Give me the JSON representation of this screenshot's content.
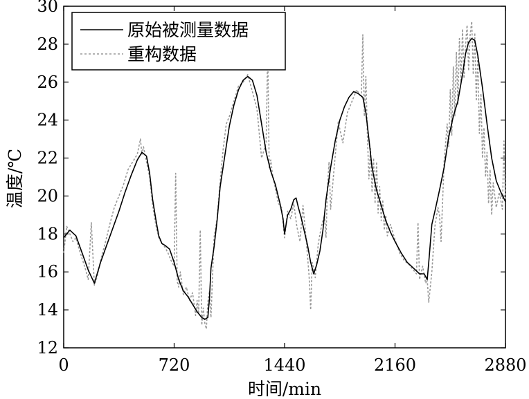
{
  "chart_data": {
    "type": "line",
    "title": "",
    "xlabel": "时间/min",
    "ylabel": "温度/℃",
    "xlim": [
      0,
      2880
    ],
    "ylim": [
      12,
      30
    ],
    "xticks": [
      0,
      720,
      1440,
      2160,
      2880
    ],
    "yticks": [
      12,
      14,
      16,
      18,
      20,
      22,
      24,
      26,
      28,
      30
    ],
    "grid": false,
    "legend_position": "top-left",
    "series": [
      {
        "name": "原始被测量数据",
        "style": "solid",
        "color": "#000000",
        "x": [
          0,
          40,
          80,
          120,
          160,
          200,
          240,
          280,
          320,
          360,
          400,
          440,
          480,
          510,
          540,
          560,
          580,
          600,
          620,
          640,
          660,
          690,
          720,
          750,
          780,
          810,
          840,
          870,
          900,
          920,
          940,
          950,
          960,
          980,
          1000,
          1020,
          1050,
          1080,
          1110,
          1140,
          1170,
          1200,
          1230,
          1260,
          1290,
          1320,
          1350,
          1380,
          1410,
          1430,
          1440,
          1460,
          1480,
          1500,
          1515,
          1530,
          1550,
          1570,
          1590,
          1610,
          1630,
          1650,
          1670,
          1690,
          1710,
          1740,
          1770,
          1800,
          1830,
          1860,
          1890,
          1920,
          1950,
          1970,
          1990,
          2010,
          2040,
          2070,
          2100,
          2130,
          2160,
          2200,
          2240,
          2280,
          2320,
          2350,
          2370,
          2380,
          2400,
          2420,
          2450,
          2480,
          2510,
          2540,
          2570,
          2600,
          2620,
          2640,
          2660,
          2680,
          2700,
          2730,
          2760,
          2790,
          2820,
          2850,
          2880
        ],
        "values": [
          17.8,
          18.2,
          17.9,
          17.0,
          16.1,
          15.4,
          16.5,
          17.4,
          18.3,
          19.2,
          20.2,
          21.1,
          21.9,
          22.3,
          22.1,
          21.2,
          19.8,
          18.8,
          17.9,
          17.5,
          17.4,
          17.2,
          16.5,
          15.6,
          15.0,
          14.7,
          14.3,
          13.9,
          13.6,
          13.5,
          13.6,
          14.6,
          16.2,
          17.3,
          18.7,
          20.5,
          22.1,
          23.7,
          24.8,
          25.6,
          26.1,
          26.3,
          26.1,
          25.3,
          23.8,
          22.3,
          21.3,
          20.6,
          19.6,
          18.8,
          18.0,
          19.0,
          19.3,
          19.8,
          19.9,
          19.4,
          18.8,
          18.1,
          17.4,
          16.5,
          15.9,
          16.4,
          17.1,
          18.2,
          19.8,
          21.5,
          22.9,
          24.0,
          24.7,
          25.2,
          25.5,
          25.4,
          25.2,
          24.4,
          23.0,
          21.5,
          20.3,
          19.5,
          18.7,
          18.1,
          17.6,
          17.0,
          16.5,
          16.2,
          15.9,
          15.9,
          15.6,
          16.5,
          18.5,
          19.2,
          20.3,
          21.5,
          23.1,
          24.2,
          25.0,
          26.4,
          27.5,
          28.1,
          28.3,
          28.2,
          27.4,
          25.7,
          23.8,
          22.0,
          20.8,
          20.2,
          19.7
        ]
      },
      {
        "name": "重构数据",
        "style": "dotted",
        "color": "#999999",
        "x": [
          0,
          20,
          40,
          60,
          80,
          100,
          120,
          140,
          160,
          180,
          200,
          220,
          240,
          270,
          300,
          330,
          360,
          390,
          420,
          450,
          480,
          500,
          510,
          520,
          540,
          560,
          580,
          600,
          620,
          640,
          660,
          680,
          700,
          720,
          730,
          740,
          750,
          760,
          780,
          800,
          820,
          840,
          860,
          870,
          880,
          890,
          900,
          910,
          920,
          930,
          940,
          950,
          960,
          980,
          1000,
          1020,
          1040,
          1060,
          1080,
          1110,
          1140,
          1170,
          1200,
          1230,
          1260,
          1290,
          1320,
          1330,
          1340,
          1350,
          1360,
          1380,
          1400,
          1420,
          1440,
          1460,
          1480,
          1500,
          1520,
          1540,
          1560,
          1580,
          1600,
          1610,
          1620,
          1630,
          1640,
          1660,
          1680,
          1700,
          1710,
          1720,
          1730,
          1740,
          1760,
          1790,
          1820,
          1850,
          1880,
          1910,
          1940,
          1950,
          1960,
          1970,
          1980,
          1990,
          2000,
          2010,
          2020,
          2030,
          2040,
          2050,
          2060,
          2070,
          2080,
          2090,
          2100,
          2110,
          2130,
          2160,
          2190,
          2220,
          2250,
          2280,
          2300,
          2310,
          2320,
          2340,
          2360,
          2370,
          2380,
          2400,
          2420,
          2440,
          2450,
          2460,
          2480,
          2500,
          2510,
          2520,
          2530,
          2540,
          2550,
          2560,
          2570,
          2580,
          2590,
          2600,
          2610,
          2620,
          2630,
          2640,
          2650,
          2660,
          2670,
          2680,
          2690,
          2700,
          2710,
          2720,
          2730,
          2740,
          2750,
          2760,
          2770,
          2780,
          2790,
          2800,
          2820,
          2840,
          2860,
          2870,
          2880
        ],
        "values": [
          17.0,
          18.4,
          18.0,
          17.6,
          17.8,
          17.2,
          16.7,
          16.2,
          15.6,
          18.6,
          15.3,
          15.8,
          16.6,
          17.5,
          18.5,
          19.4,
          20.0,
          20.6,
          21.4,
          21.8,
          22.2,
          23.0,
          22.2,
          22.6,
          21.8,
          21.0,
          19.5,
          18.5,
          17.8,
          17.5,
          17.3,
          17.0,
          16.6,
          16.3,
          21.2,
          15.5,
          15.2,
          16.0,
          14.8,
          15.2,
          14.5,
          14.9,
          13.7,
          14.5,
          13.8,
          18.2,
          13.2,
          14.1,
          13.3,
          13.0,
          14.4,
          15.0,
          13.6,
          17.8,
          18.8,
          20.8,
          22.5,
          23.8,
          24.2,
          25.0,
          25.8,
          26.0,
          26.4,
          25.5,
          24.6,
          22.0,
          22.8,
          27.8,
          21.5,
          21.9,
          21.2,
          20.4,
          19.6,
          19.4,
          17.8,
          19.2,
          18.8,
          19.6,
          18.4,
          17.6,
          19.5,
          17.8,
          15.8,
          14.0,
          16.5,
          16.2,
          15.7,
          17.5,
          18.4,
          19.0,
          17.8,
          20.5,
          21.8,
          19.3,
          21.2,
          23.9,
          22.8,
          24.4,
          25.0,
          25.6,
          25.2,
          28.5,
          24.2,
          26.3,
          23.2,
          20.9,
          22.5,
          20.2,
          22.0,
          19.6,
          21.8,
          19.1,
          20.5,
          18.7,
          19.8,
          18.2,
          19.0,
          17.9,
          18.5,
          17.7,
          17.0,
          16.6,
          16.4,
          16.1,
          15.9,
          18.6,
          15.6,
          16.3,
          15.4,
          15.6,
          14.4,
          16.0,
          18.4,
          19.4,
          19.0,
          17.6,
          21.8,
          23.8,
          22.6,
          25.6,
          23.2,
          26.8,
          24.2,
          27.6,
          24.8,
          28.3,
          26.0,
          28.8,
          26.2,
          28.0,
          29.0,
          26.6,
          28.5,
          29.2,
          26.4,
          28.6,
          25.0,
          27.4,
          23.3,
          25.4,
          22.0,
          23.6,
          21.0,
          22.3,
          19.6,
          21.4,
          19.0,
          20.7,
          19.4,
          20.2,
          19.3,
          22.9,
          19.8
        ]
      }
    ]
  }
}
